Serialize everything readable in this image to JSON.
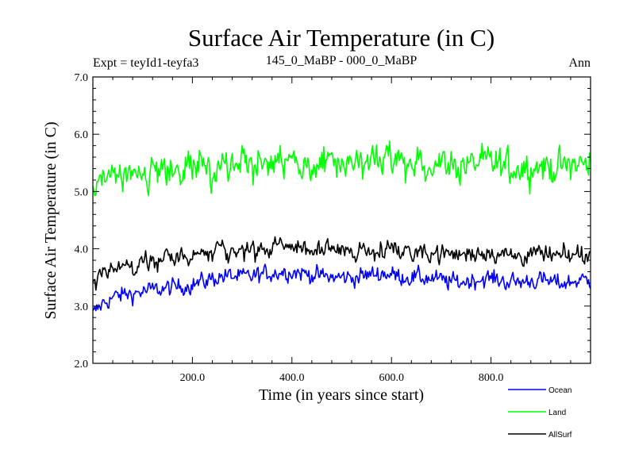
{
  "chart_data": {
    "type": "line",
    "title": "Surface Air Temperature (in C)",
    "subtitle_left": "Expt = teyId1-teyfa3",
    "subtitle_center": "145_0_MaBP - 000_0_MaBP",
    "subtitle_right": "Ann",
    "xlabel": "Time (in years since start)",
    "ylabel": "Surface Air Temperature (in C)",
    "xlim": [
      0,
      1000
    ],
    "ylim": [
      2.0,
      7.0
    ],
    "xticks": [
      200,
      400,
      600,
      800
    ],
    "xtick_labels": [
      "200.0",
      "400.0",
      "600.0",
      "800.0"
    ],
    "yticks": [
      2,
      3,
      4,
      5,
      6,
      7
    ],
    "ytick_labels": [
      "2.0",
      "3.0",
      "4.0",
      "5.0",
      "6.0",
      "7.0"
    ],
    "legend_position": "bottom-right",
    "series": [
      {
        "name": "Ocean",
        "color": "#0000ff",
        "x": [
          0,
          20,
          40,
          60,
          80,
          100,
          120,
          140,
          160,
          180,
          200,
          220,
          240,
          260,
          280,
          300,
          320,
          340,
          360,
          380,
          400,
          420,
          440,
          460,
          480,
          500,
          520,
          540,
          560,
          580,
          600,
          620,
          640,
          660,
          680,
          700,
          720,
          740,
          760,
          780,
          800,
          820,
          840,
          860,
          880,
          900,
          920,
          940,
          960,
          980,
          1000
        ],
        "y": [
          2.85,
          3.05,
          3.15,
          3.2,
          3.22,
          3.25,
          3.28,
          3.3,
          3.32,
          3.35,
          3.38,
          3.42,
          3.48,
          3.52,
          3.52,
          3.5,
          3.52,
          3.55,
          3.58,
          3.6,
          3.6,
          3.58,
          3.55,
          3.52,
          3.5,
          3.5,
          3.5,
          3.52,
          3.55,
          3.58,
          3.55,
          3.52,
          3.5,
          3.5,
          3.48,
          3.45,
          3.42,
          3.42,
          3.45,
          3.48,
          3.48,
          3.45,
          3.42,
          3.42,
          3.45,
          3.45,
          3.42,
          3.4,
          3.42,
          3.45,
          3.45
        ],
        "noise": 0.12
      },
      {
        "name": "Land",
        "color": "#00ff00",
        "x": [
          0,
          20,
          40,
          60,
          80,
          100,
          120,
          140,
          160,
          180,
          200,
          220,
          240,
          260,
          280,
          300,
          320,
          340,
          360,
          380,
          400,
          420,
          440,
          460,
          480,
          500,
          520,
          540,
          560,
          580,
          600,
          620,
          640,
          660,
          680,
          700,
          720,
          740,
          760,
          780,
          800,
          820,
          840,
          860,
          880,
          900,
          920,
          940,
          960,
          980,
          1000
        ],
        "y": [
          5.0,
          5.15,
          5.2,
          5.25,
          5.25,
          5.28,
          5.3,
          5.32,
          5.35,
          5.38,
          5.4,
          5.42,
          5.45,
          5.5,
          5.5,
          5.48,
          5.45,
          5.45,
          5.5,
          5.5,
          5.5,
          5.5,
          5.48,
          5.45,
          5.45,
          5.48,
          5.5,
          5.52,
          5.55,
          5.55,
          5.5,
          5.48,
          5.45,
          5.48,
          5.5,
          5.48,
          5.45,
          5.45,
          5.48,
          5.5,
          5.5,
          5.45,
          5.42,
          5.42,
          5.45,
          5.45,
          5.42,
          5.42,
          5.45,
          5.48,
          5.45
        ],
        "noise": 0.22
      },
      {
        "name": "AllSurf",
        "color": "#000000",
        "x": [
          0,
          20,
          40,
          60,
          80,
          100,
          120,
          140,
          160,
          180,
          200,
          220,
          240,
          260,
          280,
          300,
          320,
          340,
          360,
          380,
          400,
          420,
          440,
          460,
          480,
          500,
          520,
          540,
          560,
          580,
          600,
          620,
          640,
          660,
          680,
          700,
          720,
          740,
          760,
          780,
          800,
          820,
          840,
          860,
          880,
          900,
          920,
          940,
          960,
          980,
          1000
        ],
        "y": [
          3.4,
          3.6,
          3.65,
          3.7,
          3.72,
          3.75,
          3.78,
          3.8,
          3.82,
          3.85,
          3.88,
          3.9,
          3.95,
          4.0,
          3.98,
          3.95,
          3.95,
          3.98,
          4.0,
          4.05,
          4.05,
          4.02,
          4.0,
          3.98,
          3.95,
          3.95,
          3.95,
          3.98,
          4.0,
          4.02,
          4.0,
          3.98,
          3.95,
          3.95,
          3.95,
          3.92,
          3.9,
          3.9,
          3.92,
          3.95,
          3.95,
          3.9,
          3.88,
          3.88,
          3.9,
          3.9,
          3.88,
          3.85,
          3.88,
          3.9,
          3.9
        ],
        "noise": 0.13
      }
    ]
  }
}
